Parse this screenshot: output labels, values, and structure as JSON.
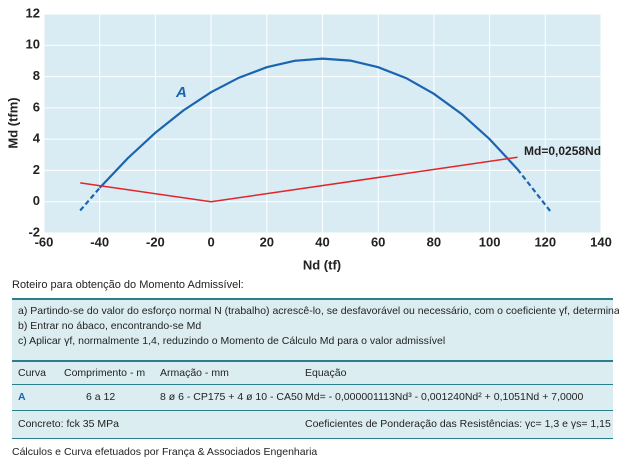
{
  "chart_data": {
    "type": "line",
    "xlabel": "Nd (tf)",
    "ylabel": "Md (tfm)",
    "xlim": [
      -60,
      140
    ],
    "xticks": [
      -60,
      -40,
      -20,
      0,
      20,
      40,
      60,
      80,
      100,
      120,
      140
    ],
    "ylim": [
      -2,
      12
    ],
    "yticks": [
      -2,
      0,
      2,
      4,
      6,
      8,
      10,
      12
    ],
    "grid": true,
    "series": [
      {
        "color": "#1a64b0",
        "dash": false,
        "x": [
          -40,
          -30,
          -20,
          -10,
          0,
          10,
          20,
          30,
          40,
          50,
          60,
          70,
          80,
          90,
          100,
          110
        ],
        "values": [
          0.88,
          2.76,
          4.41,
          5.83,
          7,
          7.93,
          8.6,
          9.01,
          9.15,
          9.02,
          8.6,
          7.9,
          6.9,
          5.6,
          4.0,
          2.08
        ]
      },
      {
        "color": "#1a64b0",
        "dash": true,
        "x": [
          -47,
          -40
        ],
        "values": [
          -0.56,
          0.88
        ]
      },
      {
        "color": "#1a64b0",
        "dash": true,
        "x": [
          110,
          122
        ],
        "values": [
          2.08,
          -0.66
        ]
      },
      {
        "color": "#e0262a",
        "dash": false,
        "x": [
          -47,
          0,
          110
        ],
        "values": [
          1.2,
          0,
          2.84
        ]
      }
    ],
    "annotations": [
      "A",
      "Md=0,0258Nd"
    ]
  },
  "document": {
    "heading": "Roteiro para obtenção do Momento Admissível:",
    "steps": [
      "a) Partindo-se do valor do esforço normal N (trabalho) acrescê-lo, se desfavorável ou necessário, com o coeficiente γf, determinando-se Nd",
      "b) Entrar no ábaco, encontrando-se Md",
      "c) Aplicar γf, normalmente 1,4, reduzindo o Momento de Cálculo Md para o valor admissível"
    ],
    "table": {
      "header": [
        "Curva",
        "Comprimento - m",
        "Armação - mm",
        "Equação"
      ],
      "rows": [
        [
          "A",
          "6 a 12",
          "8 ø 6 - CP175 + 4 ø 10 - CA50",
          "Md= - 0,000001113Nd³ - 0,001240Nd² + 0,1051Nd + 7,0000"
        ]
      ]
    },
    "notes": [
      "Concreto: fck 35 MPa",
      "Coeficientes de Ponderação das Resistências: γc= 1,3 e γs= 1,15"
    ],
    "footer": "Cálculos e Curva efetuados por França & Associados Engenharia"
  }
}
